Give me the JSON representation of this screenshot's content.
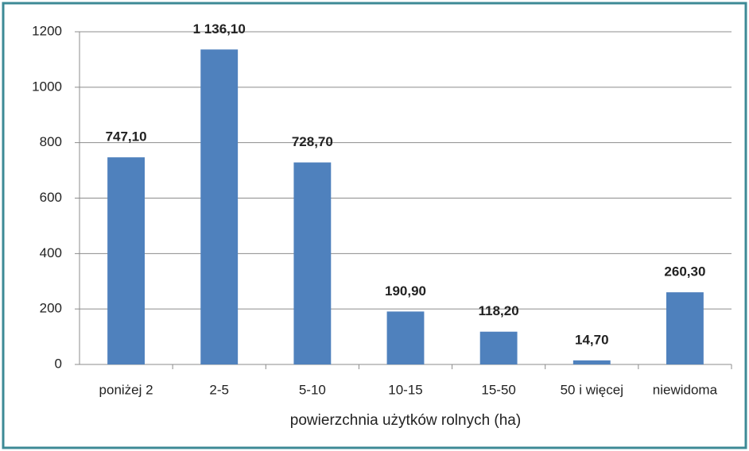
{
  "chart_data": {
    "type": "bar",
    "categories": [
      "poniżej 2",
      "2-5",
      "5-10",
      "10-15",
      "15-50",
      "50 i więcej",
      "niewidoma"
    ],
    "values": [
      747.1,
      1136.1,
      728.7,
      190.9,
      118.2,
      14.7,
      260.3
    ],
    "value_labels": [
      "747,10",
      "1 136,10",
      "728,70",
      "190,90",
      "118,20",
      "14,70",
      "260,30"
    ],
    "color": "#4f81bd",
    "x_label": "powierzchnia użytków rolnych (ha)",
    "ylim": [
      0,
      1200
    ],
    "yticks": [
      0,
      200,
      400,
      600,
      800,
      1000,
      1200
    ],
    "grid": true
  }
}
